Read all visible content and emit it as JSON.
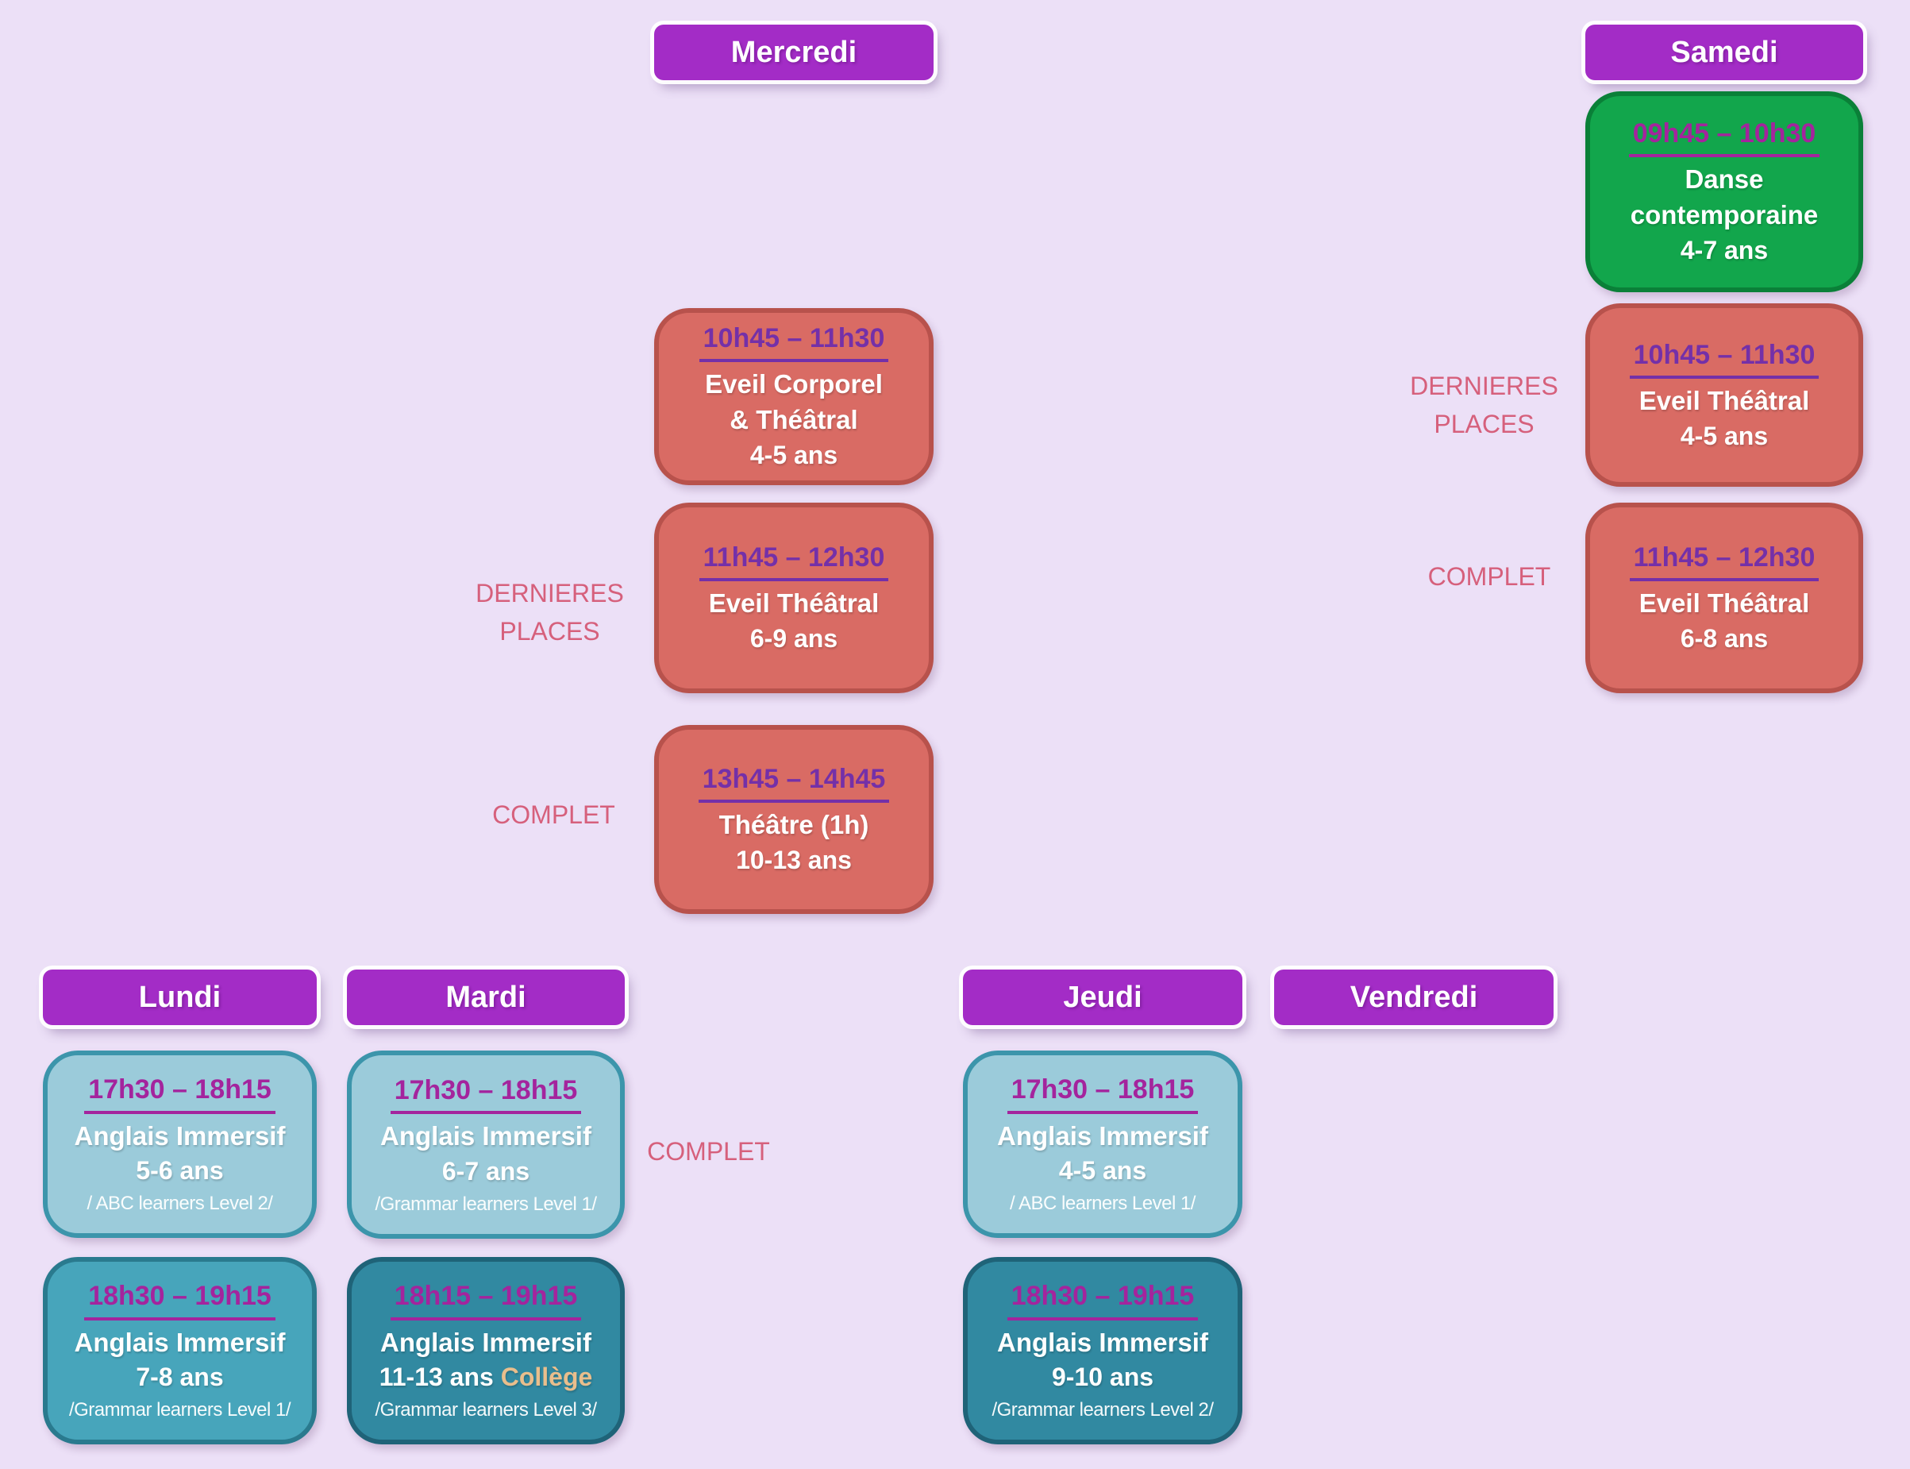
{
  "days": {
    "mercredi": "Mercredi",
    "samedi": "Samedi",
    "lundi": "Lundi",
    "mardi": "Mardi",
    "jeudi": "Jeudi",
    "vendredi": "Vendredi"
  },
  "cards": {
    "mercredi_1045": {
      "time": "10h45 – 11h30",
      "title": "Eveil Corporel\n& Théâtral",
      "age": "4-5 ans"
    },
    "mercredi_1145": {
      "time": "11h45 – 12h30",
      "title": "Eveil Théâtral",
      "age": "6-9 ans"
    },
    "mercredi_1345": {
      "time": "13h45 – 14h45",
      "title": "Théâtre (1h)",
      "age": "10-13 ans"
    },
    "samedi_0945": {
      "time": "09h45 – 10h30",
      "title": "Danse\ncontemporaine",
      "age": "4-7 ans"
    },
    "samedi_1045": {
      "time": "10h45 – 11h30",
      "title": "Eveil Théâtral",
      "age": "4-5 ans"
    },
    "samedi_1145": {
      "time": "11h45 – 12h30",
      "title": "Eveil Théâtral",
      "age": "6-8 ans"
    },
    "lundi_1730": {
      "time": "17h30 – 18h15",
      "title": "Anglais Immersif",
      "age": "5-6 ans",
      "level": "/ ABC learners Level 2/"
    },
    "lundi_1830": {
      "time": "18h30 – 19h15",
      "title": "Anglais Immersif",
      "age": "7-8 ans",
      "level": "/Grammar learners Level 1/"
    },
    "mardi_1730": {
      "time": "17h30 – 18h15",
      "title": "Anglais Immersif",
      "age": "6-7 ans",
      "level": "/Grammar learners Level 1/"
    },
    "mardi_1815": {
      "time": "18h15 – 19h15",
      "title": "Anglais Immersif",
      "age": "11-13 ans",
      "age_extra": "Collège",
      "level": "/Grammar learners Level 3/"
    },
    "jeudi_1730": {
      "time": "17h30 – 18h15",
      "title": "Anglais Immersif",
      "age": "4-5 ans",
      "level": "/ ABC learners Level 1/"
    },
    "jeudi_1830": {
      "time": "18h30 – 19h15",
      "title": "Anglais Immersif",
      "age": "9-10 ans",
      "level": "/Grammar learners Level 2/"
    }
  },
  "status_labels": {
    "mercredi_dernieres": "DERNIERES PLACES",
    "mercredi_complet": "COMPLET",
    "samedi_dernieres": "DERNIERES PLACES",
    "samedi_complet": "COMPLET",
    "mardi_complet": "COMPLET"
  },
  "colors": {
    "background": "#ece0f7",
    "day_header_purple": "#a32cc6",
    "card_theatre_fill": "#d96b64",
    "card_theatre_border": "#b8524c",
    "card_danse_fill": "#12a64c",
    "card_danse_border": "#0a8038",
    "card_anglais_light_fill": "#9bcbda",
    "card_anglais_light_border": "#3c95ab",
    "card_anglais_teal_fill": "#47a5bb",
    "card_anglais_teal_border": "#2a7a8e",
    "card_anglais_dark_fill": "#3189a1",
    "card_anglais_dark_border": "#1f6378",
    "time_violet": "#7430a8",
    "time_magenta": "#a4249d",
    "status_rose": "#d6607c",
    "college_tan": "#e9be8c",
    "text_white": "#ffffff"
  }
}
